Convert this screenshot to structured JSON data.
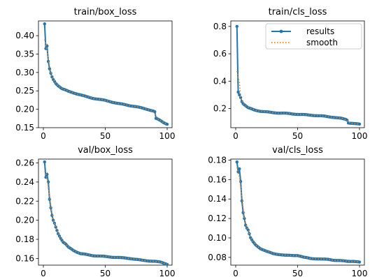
{
  "colors": {
    "results": "#1f77b4",
    "smooth": "#ff7f0e"
  },
  "legend": {
    "results_label": "results",
    "smooth_label": "smooth",
    "placement": "upper-right of train/cls_loss"
  },
  "chart_data": [
    {
      "type": "line",
      "title": "train/box_loss",
      "xlim": [
        0,
        100
      ],
      "ylim": [
        0.15,
        0.44
      ],
      "xticks": [
        0,
        50,
        100
      ],
      "yticks": [
        0.15,
        0.2,
        0.25,
        0.3,
        0.35,
        0.4
      ],
      "ytick_labels": [
        "0.15",
        "0.20",
        "0.25",
        "0.30",
        "0.35",
        "0.40"
      ],
      "keypoints": [
        [
          1,
          0.432
        ],
        [
          2,
          0.365
        ],
        [
          3,
          0.372
        ],
        [
          4,
          0.33
        ],
        [
          5,
          0.31
        ],
        [
          6,
          0.298
        ],
        [
          7,
          0.288
        ],
        [
          8,
          0.281
        ],
        [
          10,
          0.271
        ],
        [
          12,
          0.264
        ],
        [
          15,
          0.256
        ],
        [
          20,
          0.249
        ],
        [
          25,
          0.244
        ],
        [
          30,
          0.239
        ],
        [
          35,
          0.234
        ],
        [
          40,
          0.23
        ],
        [
          45,
          0.227
        ],
        [
          50,
          0.224
        ],
        [
          55,
          0.22
        ],
        [
          60,
          0.216
        ],
        [
          65,
          0.213
        ],
        [
          70,
          0.21
        ],
        [
          75,
          0.207
        ],
        [
          80,
          0.203
        ],
        [
          85,
          0.199
        ],
        [
          89,
          0.195
        ],
        [
          90,
          0.193
        ],
        [
          91,
          0.175
        ],
        [
          93,
          0.172
        ],
        [
          95,
          0.168
        ],
        [
          97,
          0.164
        ],
        [
          99,
          0.161
        ],
        [
          100,
          0.16
        ]
      ],
      "series": [
        {
          "name": "results"
        },
        {
          "name": "smooth"
        }
      ]
    },
    {
      "type": "line",
      "title": "train/cls_loss",
      "xlim": [
        0,
        100
      ],
      "ylim": [
        0.06,
        0.84
      ],
      "xticks": [
        0,
        50,
        100
      ],
      "yticks": [
        0.2,
        0.4,
        0.6,
        0.8
      ],
      "ytick_labels": [
        "0.2",
        "0.4",
        "0.6",
        "0.8"
      ],
      "keypoints": [
        [
          1,
          0.8
        ],
        [
          2,
          0.32
        ],
        [
          3,
          0.3
        ],
        [
          4,
          0.28
        ],
        [
          5,
          0.25
        ],
        [
          6,
          0.235
        ],
        [
          8,
          0.22
        ],
        [
          10,
          0.205
        ],
        [
          15,
          0.19
        ],
        [
          20,
          0.18
        ],
        [
          30,
          0.17
        ],
        [
          40,
          0.165
        ],
        [
          50,
          0.158
        ],
        [
          60,
          0.152
        ],
        [
          70,
          0.145
        ],
        [
          80,
          0.135
        ],
        [
          85,
          0.128
        ],
        [
          89,
          0.12
        ],
        [
          90,
          0.115
        ],
        [
          91,
          0.095
        ],
        [
          95,
          0.092
        ],
        [
          100,
          0.085
        ]
      ],
      "series": [
        {
          "name": "results"
        },
        {
          "name": "smooth"
        }
      ]
    },
    {
      "type": "line",
      "title": "val/box_loss",
      "xlim": [
        0,
        100
      ],
      "ylim": [
        0.153,
        0.264
      ],
      "xticks": [
        0,
        50,
        100
      ],
      "yticks": [
        0.16,
        0.18,
        0.2,
        0.22,
        0.24,
        0.26
      ],
      "ytick_labels": [
        "0.16",
        "0.18",
        "0.20",
        "0.22",
        "0.24",
        "0.26"
      ],
      "keypoints": [
        [
          1,
          0.261
        ],
        [
          2,
          0.245
        ],
        [
          3,
          0.248
        ],
        [
          4,
          0.24
        ],
        [
          5,
          0.222
        ],
        [
          6,
          0.213
        ],
        [
          7,
          0.205
        ],
        [
          8,
          0.2
        ],
        [
          9,
          0.197
        ],
        [
          10,
          0.193
        ],
        [
          12,
          0.186
        ],
        [
          14,
          0.181
        ],
        [
          16,
          0.177
        ],
        [
          18,
          0.175
        ],
        [
          20,
          0.172
        ],
        [
          25,
          0.168
        ],
        [
          30,
          0.165
        ],
        [
          40,
          0.163
        ],
        [
          50,
          0.162
        ],
        [
          60,
          0.161
        ],
        [
          70,
          0.16
        ],
        [
          80,
          0.158
        ],
        [
          90,
          0.157
        ],
        [
          95,
          0.156
        ],
        [
          100,
          0.154
        ]
      ],
      "series": [
        {
          "name": "results"
        },
        {
          "name": "smooth"
        }
      ]
    },
    {
      "type": "line",
      "title": "val/cls_loss",
      "xlim": [
        0,
        100
      ],
      "ylim": [
        0.072,
        0.181
      ],
      "xticks": [
        0,
        50,
        100
      ],
      "yticks": [
        0.08,
        0.1,
        0.12,
        0.14,
        0.16,
        0.18
      ],
      "ytick_labels": [
        "0.08",
        "0.10",
        "0.12",
        "0.14",
        "0.16",
        "0.18"
      ],
      "keypoints": [
        [
          1,
          0.178
        ],
        [
          2,
          0.168
        ],
        [
          3,
          0.171
        ],
        [
          4,
          0.158
        ],
        [
          5,
          0.138
        ],
        [
          6,
          0.126
        ],
        [
          7,
          0.12
        ],
        [
          8,
          0.113
        ],
        [
          9,
          0.11
        ],
        [
          10,
          0.108
        ],
        [
          12,
          0.1
        ],
        [
          14,
          0.096
        ],
        [
          16,
          0.093
        ],
        [
          18,
          0.091
        ],
        [
          20,
          0.089
        ],
        [
          25,
          0.086
        ],
        [
          30,
          0.084
        ],
        [
          40,
          0.082
        ],
        [
          50,
          0.082
        ],
        [
          55,
          0.08
        ],
        [
          60,
          0.079
        ],
        [
          70,
          0.078
        ],
        [
          75,
          0.078
        ],
        [
          80,
          0.077
        ],
        [
          90,
          0.076
        ],
        [
          95,
          0.076
        ],
        [
          100,
          0.075
        ]
      ],
      "series": [
        {
          "name": "results"
        },
        {
          "name": "smooth"
        }
      ]
    }
  ]
}
